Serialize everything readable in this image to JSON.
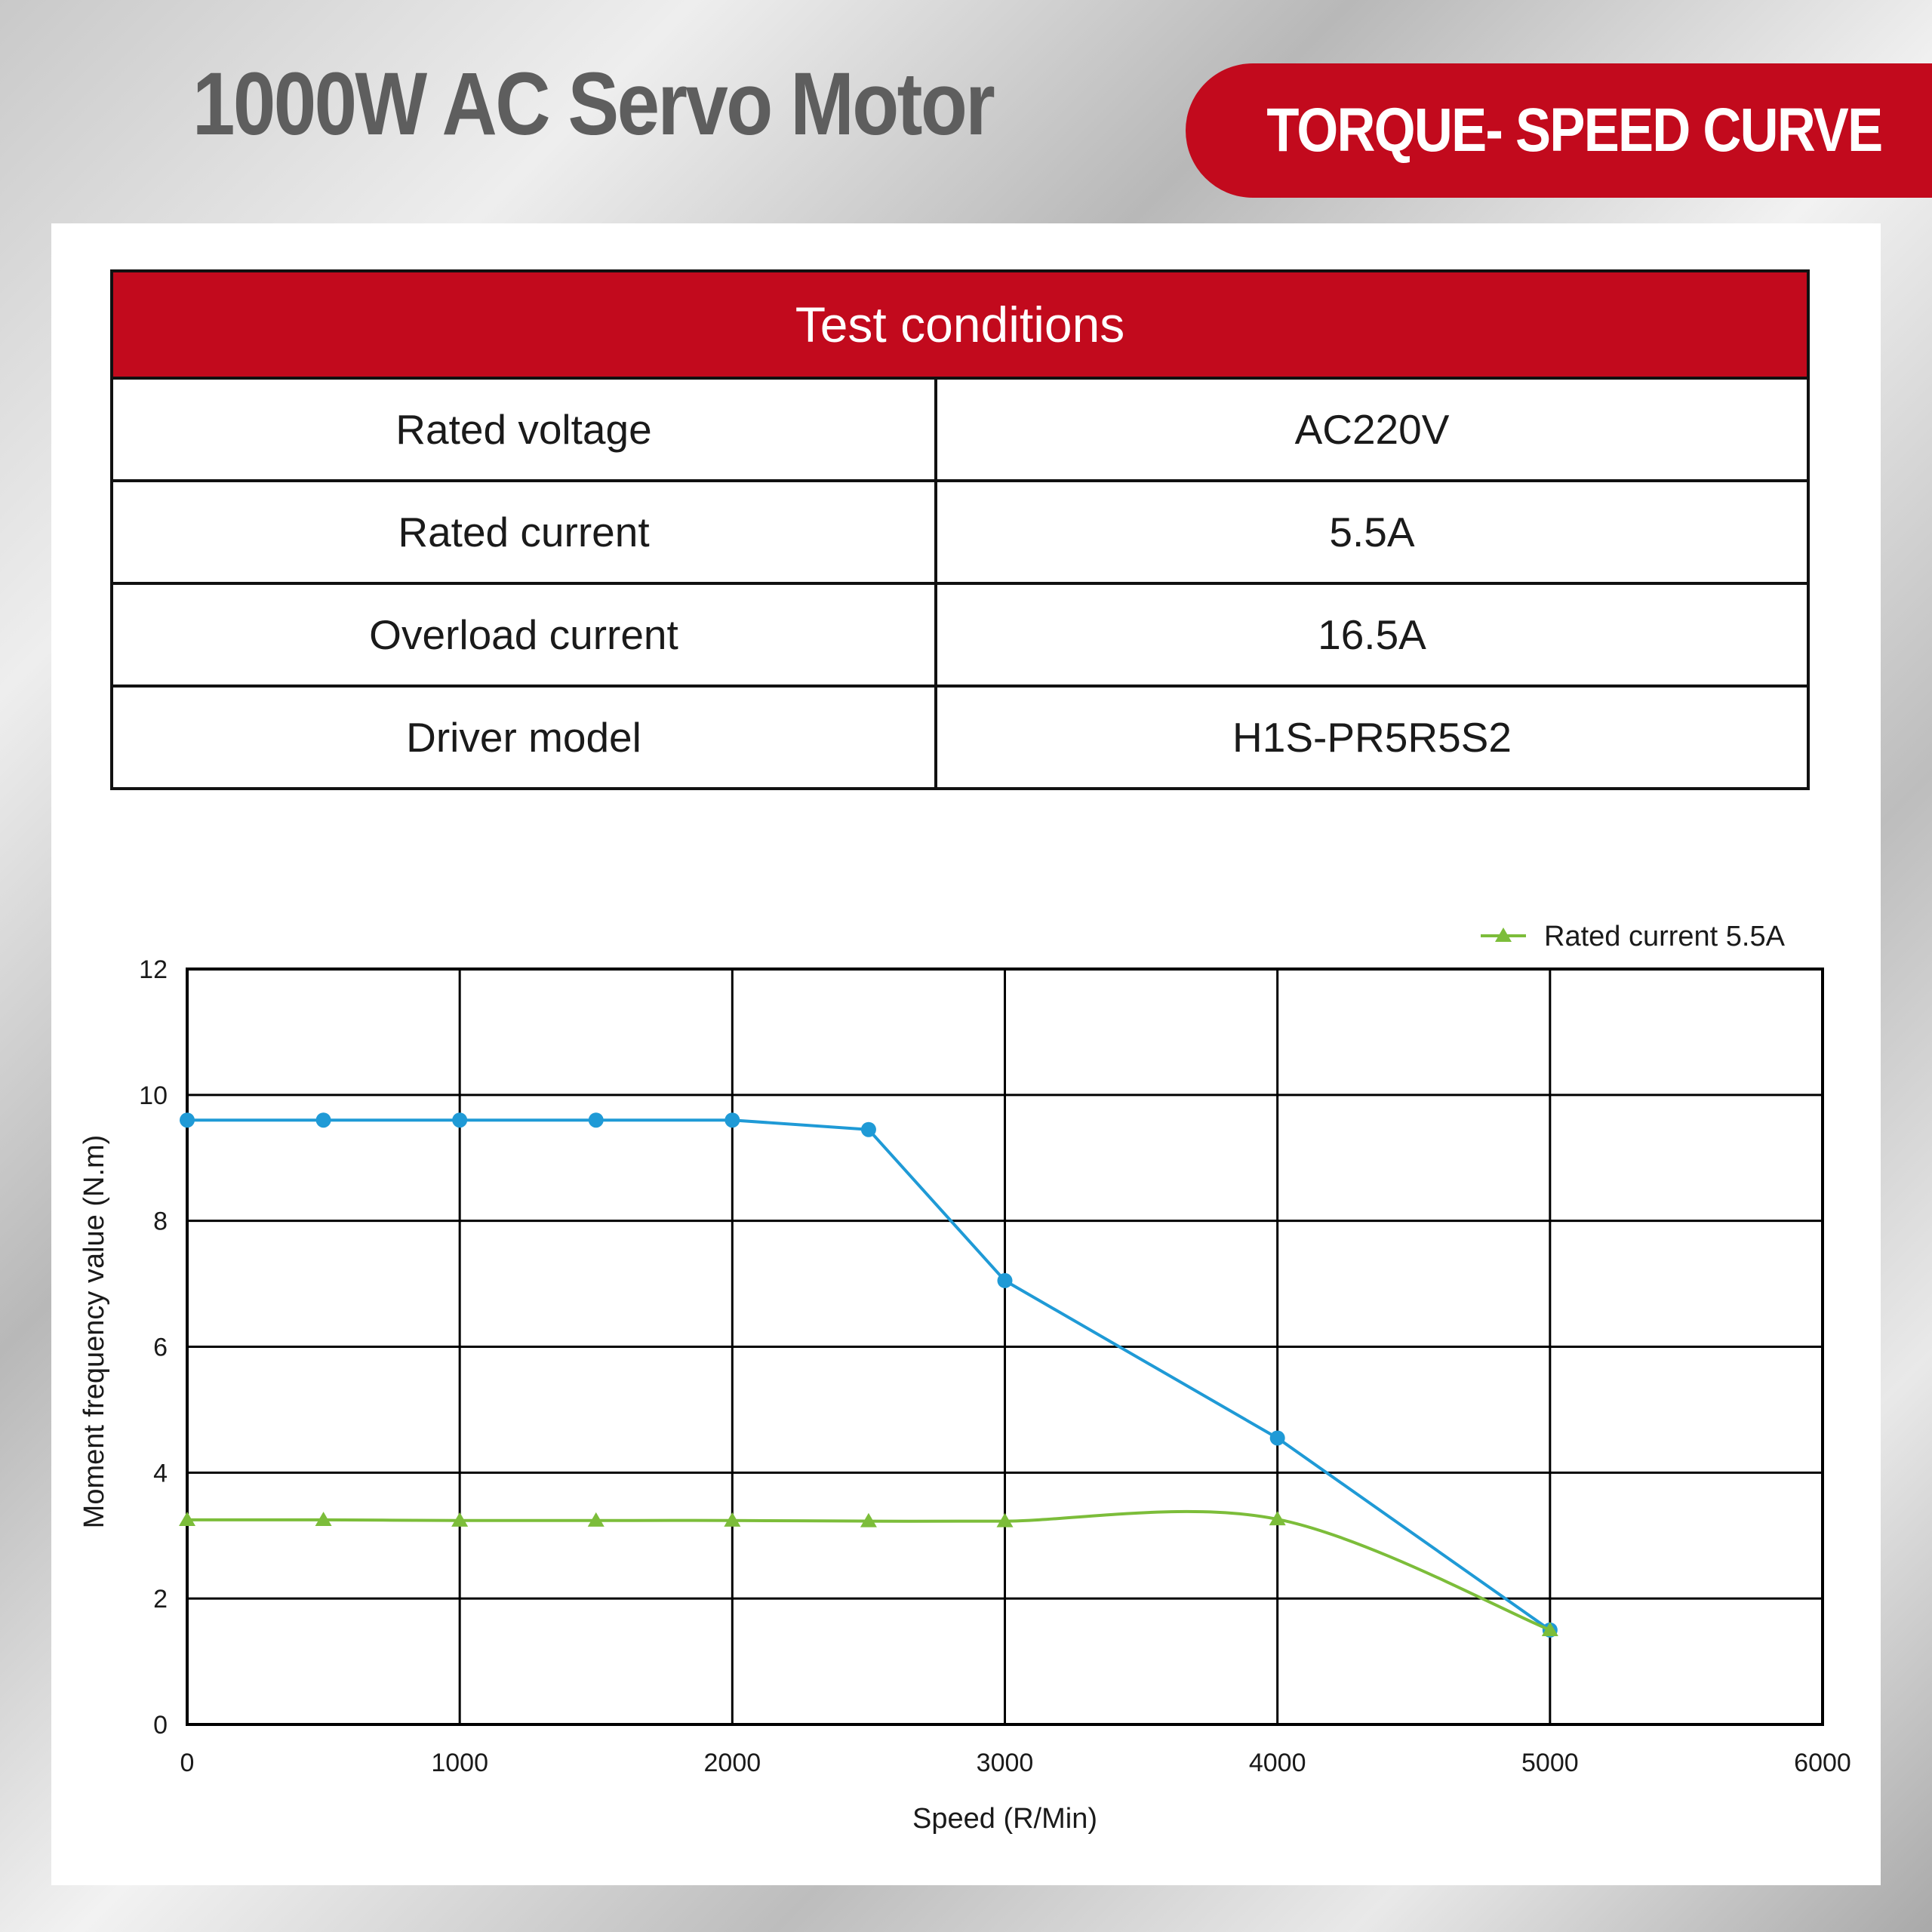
{
  "header": {
    "title": "1000W AC Servo Motor",
    "badge": "TORQUE- SPEED CURVE"
  },
  "conditions": {
    "heading": "Test conditions",
    "rows": [
      {
        "label": "Rated voltage",
        "value": "AC220V"
      },
      {
        "label": "Rated current",
        "value": "5.5A"
      },
      {
        "label": "Overload current",
        "value": "16.5A"
      },
      {
        "label": "Driver model",
        "value": "H1S-PR5R5S2"
      }
    ]
  },
  "colors": {
    "accent_red": "#c20a1d",
    "series_blue": "#1f9ad6",
    "series_green": "#7cbd3a"
  },
  "chart_data": {
    "type": "line",
    "xlabel": "Speed (R/Min)",
    "ylabel": "Moment frequency value (N.m)",
    "xlim": [
      0,
      6000
    ],
    "ylim": [
      0,
      12
    ],
    "xticks": [
      0,
      1000,
      2000,
      3000,
      4000,
      5000,
      6000
    ],
    "yticks": [
      0,
      2,
      4,
      6,
      8,
      10,
      12
    ],
    "grid": true,
    "legend_position": "top-right",
    "series": [
      {
        "name": "",
        "marker": "circle",
        "color": "#1f9ad6",
        "x": [
          0,
          500,
          1000,
          1500,
          2000,
          2500,
          3000,
          4000,
          5000
        ],
        "y": [
          9.6,
          9.6,
          9.6,
          9.6,
          9.6,
          9.45,
          7.05,
          4.55,
          1.5
        ]
      },
      {
        "name": "Rated current 5.5A",
        "marker": "triangle",
        "color": "#7cbd3a",
        "smooth": true,
        "x": [
          0,
          500,
          1000,
          1500,
          2000,
          2500,
          3000,
          4000,
          5000
        ],
        "y": [
          3.25,
          3.25,
          3.24,
          3.24,
          3.24,
          3.23,
          3.23,
          3.26,
          1.5
        ]
      }
    ]
  }
}
